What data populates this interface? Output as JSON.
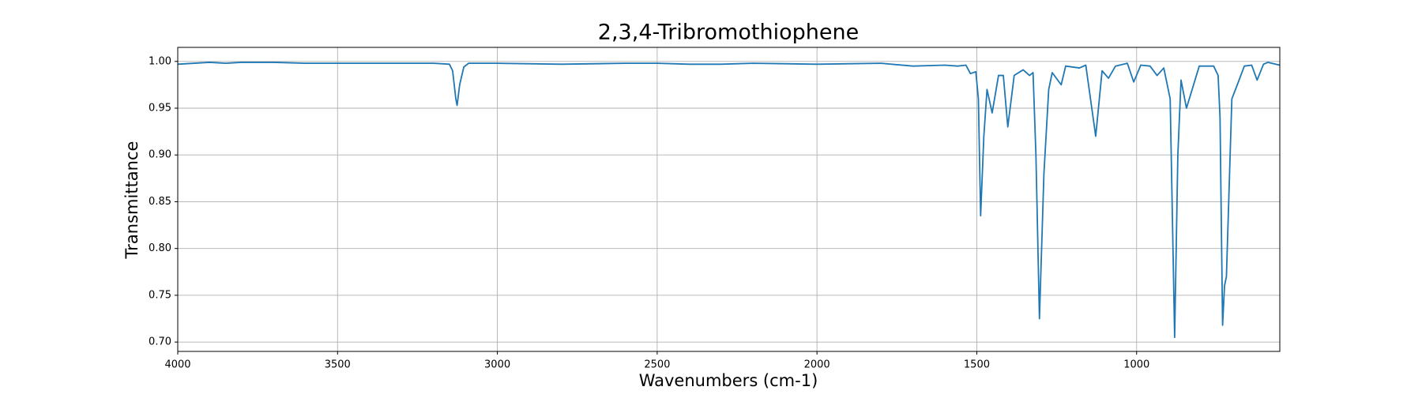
{
  "chart_data": {
    "type": "line",
    "title": "2,3,4-Tribromothiophene",
    "xlabel": "Wavenumbers (cm-1)",
    "ylabel": "Transmittance",
    "xlim": [
      4000,
      552
    ],
    "ylim": [
      0.69,
      1.015
    ],
    "xticks": [
      4000,
      3500,
      3000,
      2500,
      2000,
      1500,
      1000
    ],
    "yticks": [
      {
        "value": 0.7,
        "label": "0.70"
      },
      {
        "value": 0.75,
        "label": "0.75"
      },
      {
        "value": 0.8,
        "label": "0.80"
      },
      {
        "value": 0.85,
        "label": "0.85"
      },
      {
        "value": 0.9,
        "label": "0.90"
      },
      {
        "value": 0.95,
        "label": "0.95"
      },
      {
        "value": 1.0,
        "label": "1.00"
      }
    ],
    "grid": true,
    "series": [
      {
        "color": "#1f77b4",
        "x": [
          4000,
          3900,
          3850,
          3800,
          3700,
          3600,
          3500,
          3400,
          3300,
          3200,
          3150,
          3140,
          3130,
          3126,
          3118,
          3105,
          3090,
          3000,
          2800,
          2600,
          2500,
          2400,
          2300,
          2200,
          2000,
          1800,
          1700,
          1600,
          1560,
          1534,
          1520,
          1503,
          1495,
          1488,
          1478,
          1468,
          1452,
          1432,
          1417,
          1403,
          1383,
          1355,
          1335,
          1324,
          1315,
          1304,
          1290,
          1275,
          1264,
          1236,
          1222,
          1179,
          1159,
          1128,
          1108,
          1088,
          1066,
          1029,
          1009,
          987,
          958,
          936,
          915,
          895,
          881,
          871,
          861,
          844,
          804,
          759,
          745,
          739,
          731,
          725,
          719,
          702,
          685,
          663,
          640,
          623,
          603,
          589,
          552
        ],
        "values": [
          0.997,
          0.999,
          0.998,
          0.999,
          0.999,
          0.998,
          0.998,
          0.998,
          0.998,
          0.998,
          0.997,
          0.99,
          0.96,
          0.953,
          0.975,
          0.994,
          0.998,
          0.998,
          0.997,
          0.998,
          0.998,
          0.997,
          0.997,
          0.998,
          0.997,
          0.998,
          0.995,
          0.996,
          0.995,
          0.996,
          0.987,
          0.989,
          0.96,
          0.835,
          0.92,
          0.97,
          0.945,
          0.985,
          0.985,
          0.93,
          0.985,
          0.991,
          0.985,
          0.988,
          0.9,
          0.725,
          0.88,
          0.97,
          0.988,
          0.975,
          0.995,
          0.993,
          0.996,
          0.92,
          0.99,
          0.982,
          0.995,
          0.998,
          0.978,
          0.996,
          0.995,
          0.985,
          0.993,
          0.96,
          0.705,
          0.9,
          0.98,
          0.95,
          0.995,
          0.995,
          0.985,
          0.94,
          0.718,
          0.76,
          0.77,
          0.96,
          0.975,
          0.995,
          0.996,
          0.98,
          0.997,
          0.999,
          0.996
        ]
      }
    ]
  }
}
